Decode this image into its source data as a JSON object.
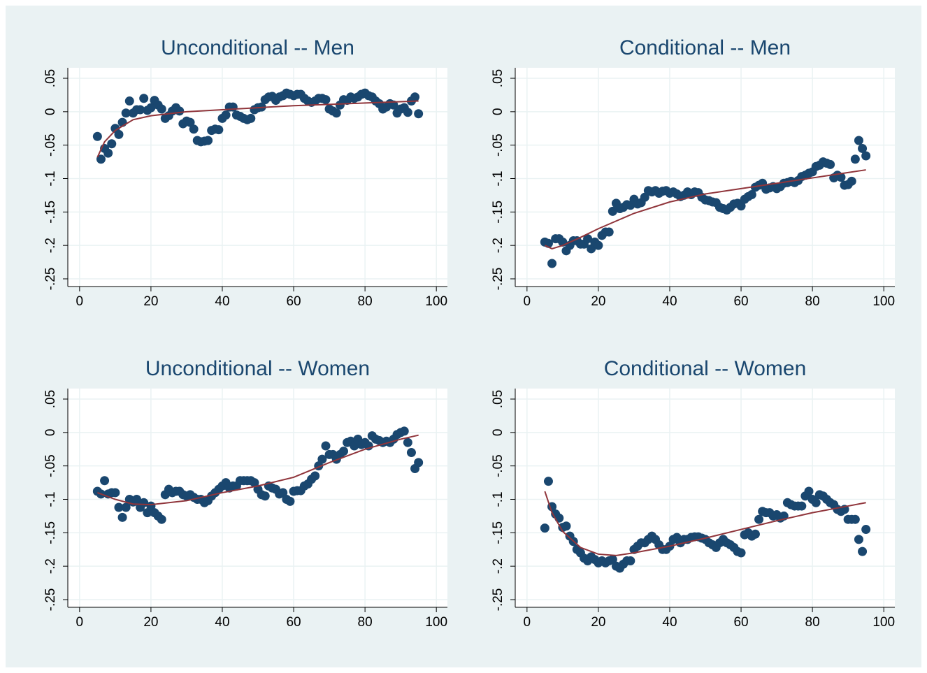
{
  "chart_data": [
    {
      "type": "scatter",
      "title": "Unconditional -- Men",
      "xlim": [
        -3.3,
        103.1
      ],
      "ylim": [
        -0.2615,
        0.0657
      ],
      "xticks": [
        0,
        20,
        40,
        60,
        80,
        100
      ],
      "yticks": [
        {
          "value": 0.05,
          "label": ".05"
        },
        0,
        {
          "value": -0.05,
          "label": "-.05"
        },
        {
          "value": -0.1,
          "label": "-.1"
        },
        {
          "value": -0.15,
          "label": "-.15"
        },
        {
          "value": -0.2,
          "label": "-.2"
        },
        {
          "value": -0.25,
          "label": "-.25"
        }
      ],
      "grid": true,
      "series": [
        {
          "mode": "markers",
          "color": "#1a476f",
          "x": [
            5,
            6,
            7,
            8,
            9,
            10,
            11,
            12,
            13,
            14,
            15,
            16,
            17,
            18,
            19,
            20,
            21,
            22,
            23,
            24,
            25,
            26,
            27,
            28,
            29,
            30,
            31,
            32,
            33,
            34,
            35,
            36,
            37,
            38,
            39,
            40,
            41,
            42,
            43,
            44,
            45,
            46,
            47,
            48,
            49,
            50,
            51,
            52,
            53,
            54,
            55,
            56,
            57,
            58,
            59,
            60,
            61,
            62,
            63,
            64,
            65,
            66,
            67,
            68,
            69,
            70,
            71,
            72,
            73,
            74,
            75,
            76,
            77,
            78,
            79,
            80,
            81,
            82,
            83,
            84,
            85,
            86,
            87,
            88,
            89,
            90,
            91,
            92,
            93,
            94,
            95
          ],
          "values": [
            -0.037,
            -0.071,
            -0.055,
            -0.062,
            -0.048,
            -0.025,
            -0.034,
            -0.016,
            -0.002,
            0.016,
            -0.002,
            0.003,
            0.003,
            0.02,
            0.002,
            0.006,
            0.017,
            0.01,
            0.004,
            -0.01,
            -0.006,
            0.001,
            0.006,
            0.001,
            -0.018,
            -0.014,
            -0.016,
            -0.026,
            -0.043,
            -0.045,
            -0.044,
            -0.043,
            -0.028,
            -0.026,
            -0.027,
            -0.01,
            -0.005,
            0.007,
            0.007,
            -0.005,
            -0.007,
            -0.01,
            -0.012,
            -0.01,
            0.003,
            0.006,
            0.007,
            0.018,
            0.022,
            0.023,
            0.017,
            0.022,
            0.024,
            0.028,
            0.026,
            0.024,
            0.026,
            0.026,
            0.02,
            0.016,
            0.014,
            0.016,
            0.02,
            0.02,
            0.018,
            0.004,
            0.001,
            -0.002,
            0.01,
            0.018,
            0.017,
            0.022,
            0.02,
            0.022,
            0.026,
            0.028,
            0.024,
            0.022,
            0.016,
            0.012,
            0.004,
            0.007,
            0.012,
            0.01,
            -0.002,
            0.004,
            0.006,
            -0.001,
            0.016,
            0.022,
            -0.003
          ]
        },
        {
          "mode": "line",
          "color": "#90353b",
          "x": [
            5,
            7,
            10,
            15,
            20,
            30,
            40,
            50,
            60,
            70,
            80,
            90,
            95
          ],
          "values": [
            -0.068,
            -0.045,
            -0.028,
            -0.012,
            -0.006,
            0,
            0.003,
            0.006,
            0.009,
            0.011,
            0.013,
            0.015,
            0.016
          ]
        }
      ]
    },
    {
      "type": "scatter",
      "title": "Conditional -- Men",
      "xlim": [
        -3.3,
        103.1
      ],
      "ylim": [
        -0.2615,
        0.0657
      ],
      "xticks": [
        0,
        20,
        40,
        60,
        80,
        100
      ],
      "yticks": [
        {
          "value": 0.05,
          "label": ".05"
        },
        0,
        {
          "value": -0.05,
          "label": "-.05"
        },
        {
          "value": -0.1,
          "label": "-.1"
        },
        {
          "value": -0.15,
          "label": "-.15"
        },
        {
          "value": -0.2,
          "label": "-.2"
        },
        {
          "value": -0.25,
          "label": "-.25"
        }
      ],
      "grid": true,
      "series": [
        {
          "mode": "markers",
          "color": "#1a476f",
          "x": [
            5,
            6,
            7,
            8,
            9,
            10,
            11,
            12,
            13,
            14,
            15,
            16,
            17,
            18,
            19,
            20,
            21,
            22,
            23,
            24,
            25,
            26,
            27,
            28,
            29,
            30,
            31,
            32,
            33,
            34,
            35,
            36,
            37,
            38,
            39,
            40,
            41,
            42,
            43,
            44,
            45,
            46,
            47,
            48,
            49,
            50,
            51,
            52,
            53,
            54,
            55,
            56,
            57,
            58,
            59,
            60,
            61,
            62,
            63,
            64,
            65,
            66,
            67,
            68,
            69,
            70,
            71,
            72,
            73,
            74,
            75,
            76,
            77,
            78,
            79,
            80,
            81,
            82,
            83,
            84,
            85,
            86,
            87,
            88,
            89,
            90,
            91,
            92,
            93,
            94,
            95
          ],
          "values": [
            -0.195,
            -0.197,
            -0.227,
            -0.19,
            -0.19,
            -0.195,
            -0.208,
            -0.2,
            -0.193,
            -0.193,
            -0.198,
            -0.198,
            -0.19,
            -0.205,
            -0.195,
            -0.2,
            -0.185,
            -0.18,
            -0.18,
            -0.149,
            -0.137,
            -0.145,
            -0.143,
            -0.139,
            -0.14,
            -0.131,
            -0.138,
            -0.136,
            -0.128,
            -0.118,
            -0.12,
            -0.118,
            -0.122,
            -0.119,
            -0.118,
            -0.122,
            -0.12,
            -0.123,
            -0.127,
            -0.125,
            -0.12,
            -0.124,
            -0.12,
            -0.121,
            -0.128,
            -0.132,
            -0.133,
            -0.135,
            -0.136,
            -0.143,
            -0.145,
            -0.147,
            -0.143,
            -0.138,
            -0.137,
            -0.141,
            -0.131,
            -0.127,
            -0.124,
            -0.113,
            -0.11,
            -0.107,
            -0.116,
            -0.114,
            -0.112,
            -0.115,
            -0.112,
            -0.107,
            -0.106,
            -0.104,
            -0.106,
            -0.103,
            -0.097,
            -0.095,
            -0.092,
            -0.09,
            -0.082,
            -0.08,
            -0.075,
            -0.077,
            -0.079,
            -0.099,
            -0.095,
            -0.098,
            -0.11,
            -0.109,
            -0.104,
            -0.071,
            -0.043,
            -0.055,
            -0.066
          ]
        },
        {
          "mode": "line",
          "color": "#90353b",
          "x": [
            5,
            7,
            10,
            15,
            20,
            30,
            40,
            50,
            60,
            70,
            80,
            90,
            95
          ],
          "values": [
            -0.2,
            -0.205,
            -0.2,
            -0.188,
            -0.175,
            -0.152,
            -0.135,
            -0.123,
            -0.115,
            -0.107,
            -0.099,
            -0.091,
            -0.087
          ]
        }
      ]
    },
    {
      "type": "scatter",
      "title": "Unconditional -- Women",
      "xlim": [
        -3.3,
        103.1
      ],
      "ylim": [
        -0.2615,
        0.0657
      ],
      "xticks": [
        0,
        20,
        40,
        60,
        80,
        100
      ],
      "yticks": [
        {
          "value": 0.05,
          "label": ".05"
        },
        0,
        {
          "value": -0.05,
          "label": "-.05"
        },
        {
          "value": -0.1,
          "label": "-.1"
        },
        {
          "value": -0.15,
          "label": "-.15"
        },
        {
          "value": -0.2,
          "label": "-.2"
        },
        {
          "value": -0.25,
          "label": "-.25"
        }
      ],
      "grid": true,
      "series": [
        {
          "mode": "markers",
          "color": "#1a476f",
          "x": [
            5,
            6,
            7,
            8,
            9,
            10,
            11,
            12,
            13,
            14,
            15,
            16,
            17,
            18,
            19,
            20,
            21,
            22,
            23,
            24,
            25,
            26,
            27,
            28,
            29,
            30,
            31,
            32,
            33,
            34,
            35,
            36,
            37,
            38,
            39,
            40,
            41,
            42,
            43,
            44,
            45,
            46,
            47,
            48,
            49,
            50,
            51,
            52,
            53,
            54,
            55,
            56,
            57,
            58,
            59,
            60,
            61,
            62,
            63,
            64,
            65,
            66,
            67,
            68,
            69,
            70,
            71,
            72,
            73,
            74,
            75,
            76,
            77,
            78,
            79,
            80,
            81,
            82,
            83,
            84,
            85,
            86,
            87,
            88,
            89,
            90,
            91,
            92,
            93,
            94,
            95
          ],
          "values": [
            -0.088,
            -0.092,
            -0.072,
            -0.092,
            -0.09,
            -0.09,
            -0.112,
            -0.127,
            -0.112,
            -0.1,
            -0.104,
            -0.1,
            -0.112,
            -0.105,
            -0.12,
            -0.11,
            -0.12,
            -0.125,
            -0.13,
            -0.093,
            -0.085,
            -0.09,
            -0.088,
            -0.088,
            -0.093,
            -0.095,
            -0.093,
            -0.097,
            -0.1,
            -0.1,
            -0.105,
            -0.102,
            -0.095,
            -0.09,
            -0.085,
            -0.08,
            -0.075,
            -0.083,
            -0.08,
            -0.08,
            -0.072,
            -0.072,
            -0.072,
            -0.072,
            -0.075,
            -0.085,
            -0.093,
            -0.095,
            -0.08,
            -0.083,
            -0.085,
            -0.092,
            -0.09,
            -0.1,
            -0.103,
            -0.088,
            -0.087,
            -0.087,
            -0.08,
            -0.077,
            -0.07,
            -0.065,
            -0.05,
            -0.04,
            -0.02,
            -0.033,
            -0.033,
            -0.04,
            -0.033,
            -0.028,
            -0.015,
            -0.013,
            -0.02,
            -0.01,
            -0.018,
            -0.015,
            -0.02,
            -0.005,
            -0.01,
            -0.012,
            -0.015,
            -0.013,
            -0.015,
            -0.01,
            -0.003,
            0,
            0.002,
            -0.015,
            -0.03,
            -0.054,
            -0.045
          ]
        },
        {
          "mode": "line",
          "color": "#90353b",
          "x": [
            5,
            10,
            15,
            20,
            30,
            40,
            50,
            60,
            70,
            80,
            90,
            95
          ],
          "values": [
            -0.09,
            -0.1,
            -0.107,
            -0.108,
            -0.102,
            -0.09,
            -0.08,
            -0.067,
            -0.045,
            -0.025,
            -0.01,
            -0.004
          ]
        }
      ]
    },
    {
      "type": "scatter",
      "title": "Conditional -- Women",
      "xlim": [
        -3.3,
        103.1
      ],
      "ylim": [
        -0.2615,
        0.0657
      ],
      "xticks": [
        0,
        20,
        40,
        60,
        80,
        100
      ],
      "yticks": [
        {
          "value": 0.05,
          "label": ".05"
        },
        0,
        {
          "value": -0.05,
          "label": "-.05"
        },
        {
          "value": -0.1,
          "label": "-.1"
        },
        {
          "value": -0.15,
          "label": "-.15"
        },
        {
          "value": -0.2,
          "label": "-.2"
        },
        {
          "value": -0.25,
          "label": "-.25"
        }
      ],
      "grid": true,
      "series": [
        {
          "mode": "markers",
          "color": "#1a476f",
          "x": [
            5,
            6,
            7,
            8,
            9,
            10,
            11,
            12,
            13,
            14,
            15,
            16,
            17,
            18,
            19,
            20,
            21,
            22,
            23,
            24,
            25,
            26,
            27,
            28,
            29,
            30,
            31,
            32,
            33,
            34,
            35,
            36,
            37,
            38,
            39,
            40,
            41,
            42,
            43,
            44,
            45,
            46,
            47,
            48,
            49,
            50,
            51,
            52,
            53,
            54,
            55,
            56,
            57,
            58,
            59,
            60,
            61,
            62,
            63,
            64,
            65,
            66,
            67,
            68,
            69,
            70,
            71,
            72,
            73,
            74,
            75,
            76,
            77,
            78,
            79,
            80,
            81,
            82,
            83,
            84,
            85,
            86,
            87,
            88,
            89,
            90,
            91,
            92,
            93,
            94,
            95
          ],
          "values": [
            -0.143,
            -0.073,
            -0.111,
            -0.122,
            -0.128,
            -0.142,
            -0.14,
            -0.155,
            -0.163,
            -0.175,
            -0.18,
            -0.188,
            -0.192,
            -0.186,
            -0.19,
            -0.195,
            -0.192,
            -0.195,
            -0.192,
            -0.19,
            -0.2,
            -0.203,
            -0.197,
            -0.192,
            -0.192,
            -0.175,
            -0.17,
            -0.165,
            -0.165,
            -0.16,
            -0.155,
            -0.16,
            -0.168,
            -0.175,
            -0.175,
            -0.17,
            -0.16,
            -0.157,
            -0.165,
            -0.16,
            -0.16,
            -0.157,
            -0.156,
            -0.156,
            -0.158,
            -0.16,
            -0.165,
            -0.168,
            -0.172,
            -0.165,
            -0.16,
            -0.165,
            -0.168,
            -0.172,
            -0.178,
            -0.18,
            -0.153,
            -0.15,
            -0.155,
            -0.152,
            -0.13,
            -0.118,
            -0.12,
            -0.12,
            -0.125,
            -0.123,
            -0.128,
            -0.125,
            -0.105,
            -0.108,
            -0.11,
            -0.11,
            -0.11,
            -0.095,
            -0.088,
            -0.1,
            -0.105,
            -0.093,
            -0.095,
            -0.1,
            -0.105,
            -0.108,
            -0.115,
            -0.118,
            -0.115,
            -0.13,
            -0.13,
            -0.13,
            -0.16,
            -0.178,
            -0.145
          ]
        },
        {
          "mode": "line",
          "color": "#90353b",
          "x": [
            5,
            7,
            10,
            15,
            20,
            25,
            30,
            40,
            50,
            60,
            70,
            80,
            90,
            95
          ],
          "values": [
            -0.088,
            -0.12,
            -0.148,
            -0.172,
            -0.182,
            -0.184,
            -0.18,
            -0.17,
            -0.158,
            -0.145,
            -0.132,
            -0.12,
            -0.11,
            -0.105
          ]
        }
      ]
    }
  ]
}
